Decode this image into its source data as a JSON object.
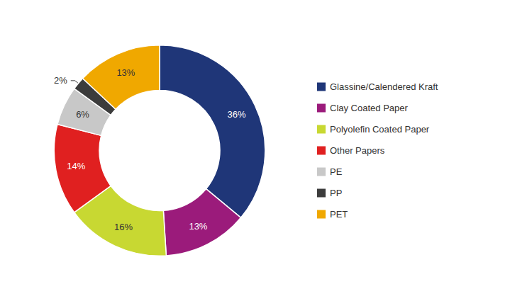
{
  "chart_data": {
    "type": "donut",
    "categories": [
      "Glassine/Calendered Kraft",
      "Clay Coated Paper",
      "Polyolefin Coated Paper",
      "Other Papers",
      "PE",
      "PP",
      "PET"
    ],
    "values": [
      36,
      13,
      16,
      14,
      6,
      2,
      13
    ],
    "value_labels": [
      "36%",
      "13%",
      "16%",
      "14%",
      "6%",
      "2%",
      "13%"
    ],
    "colors": [
      "#1f3678",
      "#9b1b7b",
      "#c8d832",
      "#e02020",
      "#c8c8c8",
      "#3c3c3c",
      "#f0a800"
    ],
    "data_labels": true,
    "legend": "right"
  }
}
